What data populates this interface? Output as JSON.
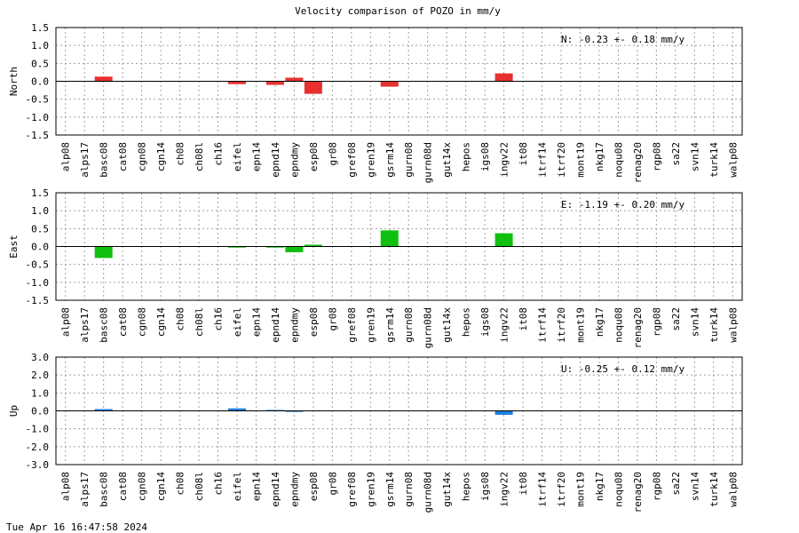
{
  "chart_data": {
    "type": "bar",
    "title": "Velocity comparison of POZO in mm/y",
    "categories": [
      "alp08",
      "alps17",
      "basc08",
      "cat08",
      "cgn08",
      "cgn14",
      "ch08",
      "ch08l",
      "ch16",
      "eifel",
      "epn14",
      "epnd14",
      "epndmy",
      "esp08",
      "gr08",
      "gref08",
      "gren19",
      "gsrm14",
      "gurn08",
      "gurn08d",
      "gut14x",
      "hepos",
      "igs08",
      "ingv22",
      "it08",
      "itrf14",
      "itrf20",
      "mont19",
      "nkg17",
      "noqu08",
      "renag20",
      "rgp08",
      "sa22",
      "svn14",
      "turk14",
      "walp08"
    ],
    "panels": [
      {
        "ylabel": "North",
        "stat": "N:  -0.23 +-  0.18 mm/y",
        "color": "#e83030",
        "ylim": [
          -1.5,
          1.5
        ],
        "yticks": [
          1.5,
          1.0,
          0.5,
          0.0,
          -0.5,
          -1.0,
          -1.5
        ],
        "ytick_labels": [
          "1.5",
          "1.0",
          "0.5",
          "0.0",
          "-0.5",
          "-1.0",
          "-1.5"
        ],
        "values": [
          0,
          0,
          0.13,
          0,
          0,
          0,
          0,
          0,
          0,
          -0.08,
          0,
          -0.1,
          0.1,
          -0.35,
          0,
          0,
          0,
          -0.15,
          0,
          0,
          0,
          0,
          0,
          0.22,
          0,
          0,
          0,
          0,
          0,
          0,
          0,
          0,
          0,
          0,
          0,
          0
        ]
      },
      {
        "ylabel": "East",
        "stat": "E:  -1.19 +-  0.20 mm/y",
        "color": "#10c010",
        "ylim": [
          -1.5,
          1.5
        ],
        "yticks": [
          1.5,
          1.0,
          0.5,
          0.0,
          -0.5,
          -1.0,
          -1.5
        ],
        "ytick_labels": [
          "1.5",
          "1.0",
          "0.5",
          "0.0",
          "-0.5",
          "-1.0",
          "-1.5"
        ],
        "values": [
          0,
          0,
          -0.32,
          0,
          0,
          0,
          0,
          0,
          0,
          -0.03,
          0,
          -0.03,
          -0.16,
          0.05,
          0,
          0,
          0,
          0.45,
          0,
          0,
          0,
          0,
          0,
          0.37,
          0,
          0,
          0,
          0,
          0,
          0,
          0,
          0,
          0,
          0,
          0,
          0
        ]
      },
      {
        "ylabel": "Up",
        "stat": "U:  -0.25 +-  0.12 mm/y",
        "color": "#1e7fe0",
        "ylim": [
          -3.0,
          3.0
        ],
        "yticks": [
          3.0,
          2.0,
          1.0,
          0.0,
          -1.0,
          -2.0,
          -3.0
        ],
        "ytick_labels": [
          "3.0",
          "2.0",
          "1.0",
          "0.0",
          "-1.0",
          "-2.0",
          "-3.0"
        ],
        "values": [
          0,
          0,
          0.1,
          0,
          0,
          0,
          0,
          0,
          0,
          0.14,
          0,
          0.05,
          -0.06,
          0,
          0,
          0,
          0,
          0,
          0,
          0,
          0,
          0,
          0,
          -0.22,
          0,
          0,
          0,
          0,
          0,
          0,
          0,
          0,
          0,
          0,
          0,
          0
        ]
      }
    ]
  },
  "footer": "Tue Apr 16 16:47:58 2024"
}
